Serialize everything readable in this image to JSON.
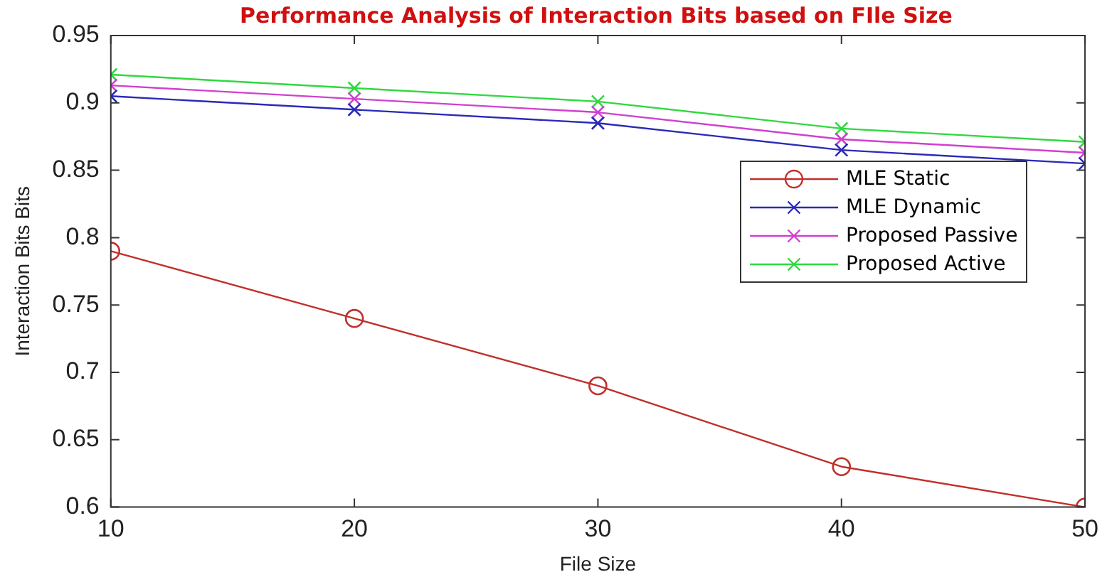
{
  "chart_data": {
    "type": "line",
    "title": "Performance Analysis of Interaction Bits based on FIle Size",
    "xlabel": "File Size",
    "ylabel": "Interaction Bits Bits",
    "x": [
      10,
      20,
      30,
      40,
      50
    ],
    "series": [
      {
        "name": "MLE Static",
        "color": "#c0302a",
        "marker": "circle",
        "values": [
          0.79,
          0.74,
          0.69,
          0.63,
          0.6
        ]
      },
      {
        "name": "MLE Dynamic",
        "color": "#2a2ab8",
        "marker": "cross",
        "values": [
          0.905,
          0.895,
          0.885,
          0.865,
          0.855
        ]
      },
      {
        "name": "Proposed Passive",
        "color": "#d040d0",
        "marker": "cross",
        "values": [
          0.913,
          0.903,
          0.893,
          0.873,
          0.863
        ]
      },
      {
        "name": "Proposed Active",
        "color": "#30d840",
        "marker": "cross",
        "values": [
          0.921,
          0.911,
          0.901,
          0.881,
          0.871
        ]
      }
    ],
    "xlim": [
      10,
      50
    ],
    "xticks": [
      10,
      20,
      30,
      40,
      50
    ],
    "ylim": [
      0.6,
      0.95
    ],
    "yticks": [
      0.6,
      0.65,
      0.7,
      0.75,
      0.8,
      0.85,
      0.9,
      0.95
    ],
    "grid": false,
    "legend": "right",
    "line_style": "solid"
  }
}
